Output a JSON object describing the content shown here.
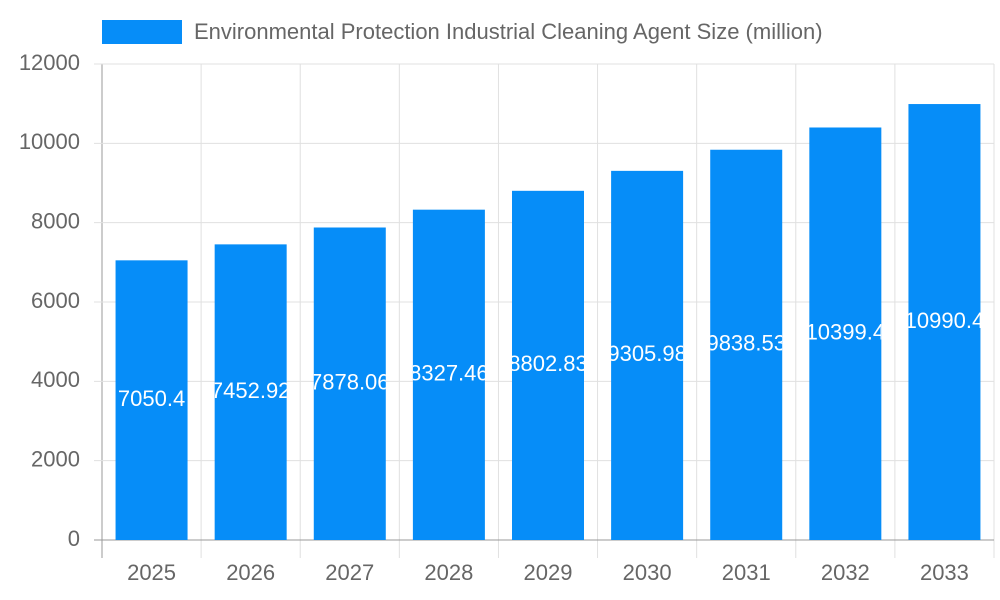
{
  "chart_data": {
    "type": "bar",
    "categories": [
      "2025",
      "2026",
      "2027",
      "2028",
      "2029",
      "2030",
      "2031",
      "2032",
      "2033"
    ],
    "series": [
      {
        "name": "Environmental Protection Industrial Cleaning Agent Size (million)",
        "color": "#068df8",
        "values": [
          7050.4,
          7452.92,
          7878.06,
          8327.46,
          8802.83,
          9305.98,
          9838.53,
          10399.4,
          10990.4
        ]
      }
    ],
    "ylim": [
      0,
      12000
    ],
    "yticks": [
      0,
      2000,
      4000,
      6000,
      8000,
      10000,
      12000
    ],
    "grid": true,
    "legend": "top"
  }
}
